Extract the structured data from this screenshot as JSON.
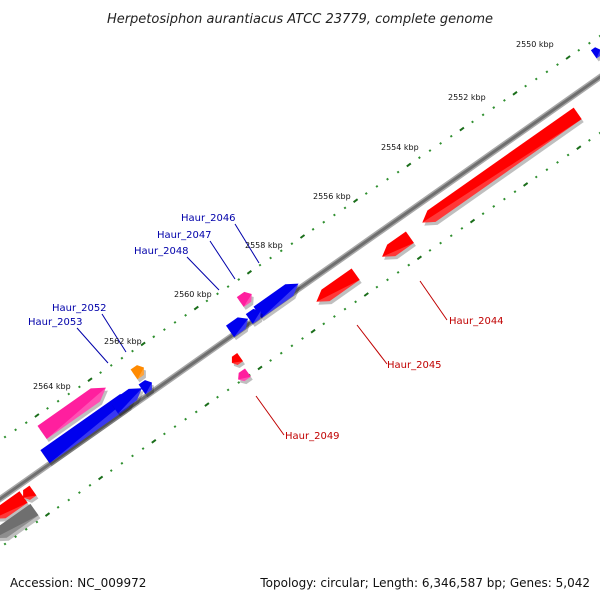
{
  "title": "Herpetosiphon aurantiacus ATCC 23779, complete genome",
  "footer": {
    "accession": "Accession: NC_009972",
    "summary": "Topology: circular; Length: 6,346,587 bp; Genes: 5,042"
  },
  "ticks": [
    {
      "label": "2550 kbp",
      "value": 2550
    },
    {
      "label": "2552 kbp",
      "value": 2552
    },
    {
      "label": "2554 kbp",
      "value": 2554
    },
    {
      "label": "2556 kbp",
      "value": 2556
    },
    {
      "label": "2558 kbp",
      "value": 2558
    },
    {
      "label": "2560 kbp",
      "value": 2560
    },
    {
      "label": "2562 kbp",
      "value": 2562
    },
    {
      "label": "2564 kbp",
      "value": 2564
    }
  ],
  "gene_labels": [
    {
      "name": "Haur_2046",
      "strand": "forward"
    },
    {
      "name": "Haur_2047",
      "strand": "forward"
    },
    {
      "name": "Haur_2048",
      "strand": "forward"
    },
    {
      "name": "Haur_2052",
      "strand": "forward"
    },
    {
      "name": "Haur_2053",
      "strand": "forward"
    },
    {
      "name": "Haur_2044",
      "strand": "reverse"
    },
    {
      "name": "Haur_2045",
      "strand": "reverse"
    },
    {
      "name": "Haur_2049",
      "strand": "reverse"
    }
  ],
  "colors": {
    "backbone": "#808080",
    "tick_major": "#1a6e1a",
    "tick_minor": "#2f8f2f",
    "forward_label": "#0000aa",
    "reverse_label": "#c00000",
    "gene_red": "#ff0000",
    "gene_blue": "#0000ee",
    "gene_pink": "#ff1f9e",
    "gene_orange": "#ff8a00",
    "gene_gray": "#6f6f6f"
  }
}
